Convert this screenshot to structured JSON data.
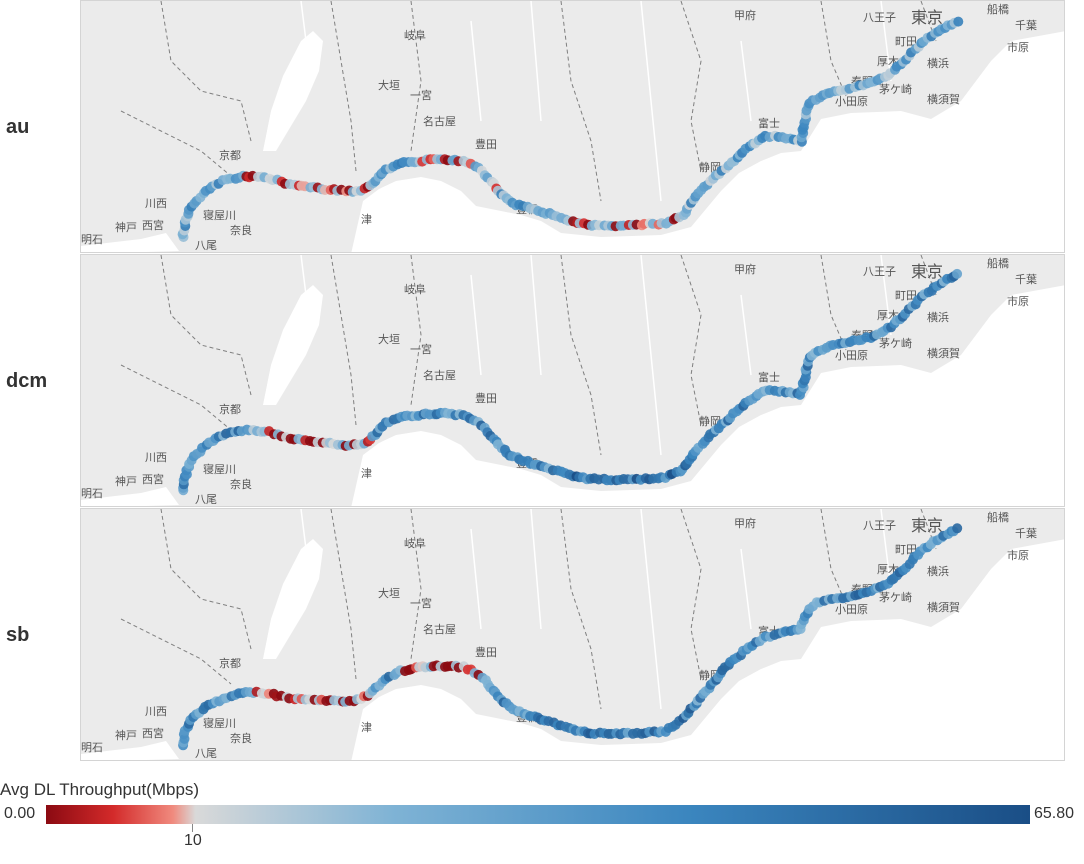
{
  "panels": [
    {
      "label": "au"
    },
    {
      "label": "dcm"
    },
    {
      "label": "sb"
    }
  ],
  "map_labels": {
    "kofu": "甲府",
    "hachioji": "八王子",
    "tokyo": "東京",
    "funabashi": "船橋",
    "chiba": "千葉",
    "machida": "町田",
    "ichihara": "市原",
    "gifu": "岐阜",
    "atsugi": "厚木",
    "yokohama": "横浜",
    "ogaki": "大垣",
    "ichinomiya": "一宮",
    "hadano": "秦野",
    "chigasaki": "茅ケ崎",
    "odawara": "小田原",
    "yokosuka": "横須賀",
    "nagoya": "名古屋",
    "toyota": "豊田",
    "fuji": "富士",
    "kyoto": "京都",
    "shizuoka": "静岡",
    "kawanishi": "川西",
    "kobe": "神戸",
    "nishinomiya": "西宮",
    "tsu": "津",
    "toyohashi": "豊橋",
    "nara": "奈良",
    "yao": "八尾",
    "akashi": "明石",
    "neyagawa": "寝屋川"
  },
  "legend": {
    "title": "Avg DL Throughput(Mbps)",
    "min_label": "0.00",
    "max_label": "65.80",
    "tick_label": "10",
    "min_value": 0,
    "max_value": 65.8,
    "tick_value": 10,
    "colors": [
      "#8b0a12",
      "#d32a2a",
      "#f08a7e",
      "#d9d9d9",
      "#7fb3d5",
      "#3b86bf",
      "#1a4e86"
    ]
  }
}
